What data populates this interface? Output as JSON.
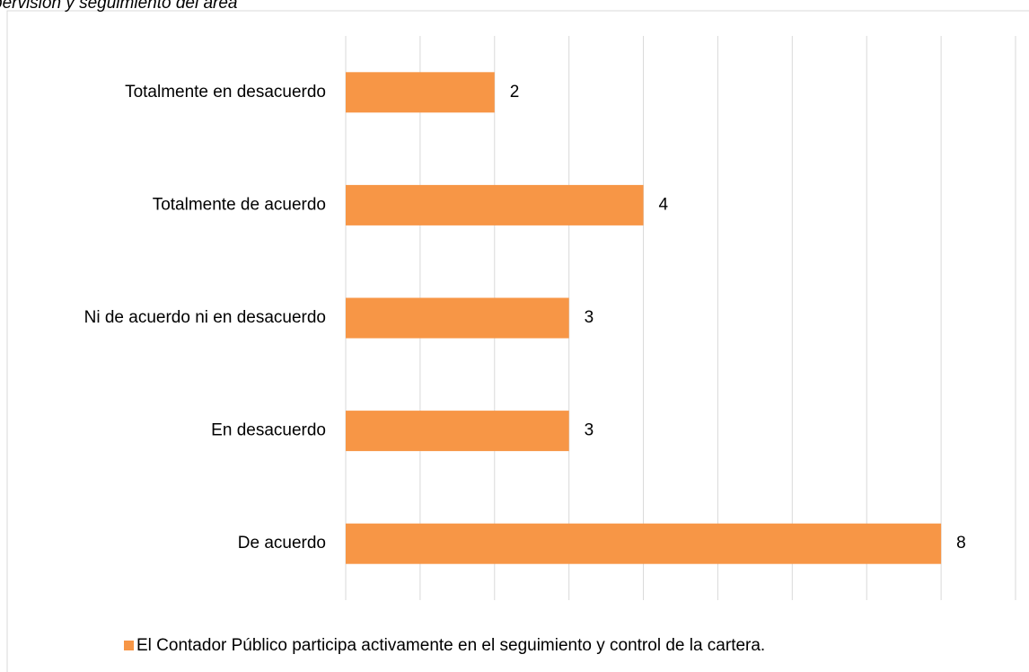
{
  "chart_data": {
    "type": "barh",
    "title": "pervisión y seguimiento del área",
    "categories": [
      "Totalmente en desacuerdo",
      "Totalmente de acuerdo",
      "Ni de acuerdo ni en desacuerdo",
      "En desacuerdo",
      "De acuerdo"
    ],
    "series": [
      {
        "name": "El Contador Público participa activamente en el seguimiento y control de la cartera.",
        "color": "#f79646",
        "values": [
          2,
          4,
          3,
          3,
          8
        ]
      }
    ],
    "xlim": [
      0,
      9
    ],
    "xticks": [
      0,
      1,
      2,
      3,
      4,
      5,
      6,
      7,
      8,
      9
    ],
    "grid": true,
    "legend": "bottom"
  }
}
